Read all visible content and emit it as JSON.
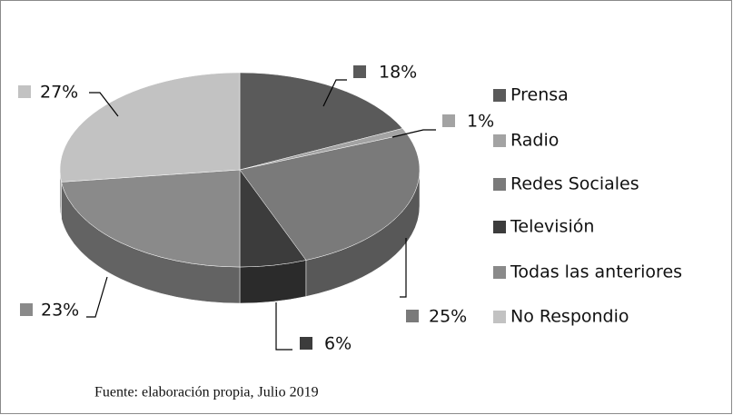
{
  "chart_data": {
    "type": "pie",
    "categories": [
      "Prensa",
      "Radio",
      "Redes Sociales",
      "Televisión",
      "Todas las anteriores",
      "No Respondio"
    ],
    "values": [
      18,
      1,
      25,
      6,
      23,
      27
    ],
    "value_labels": [
      "18%",
      "1%",
      "25%",
      "6%",
      "23%",
      "27%"
    ],
    "colors": [
      "#5a5a5a",
      "#a3a3a3",
      "#7a7a7a",
      "#3c3c3c",
      "#8a8a8a",
      "#c2c2c2"
    ],
    "legend": "right",
    "caption": "Fuente: elaboración propia, Julio 2019"
  }
}
